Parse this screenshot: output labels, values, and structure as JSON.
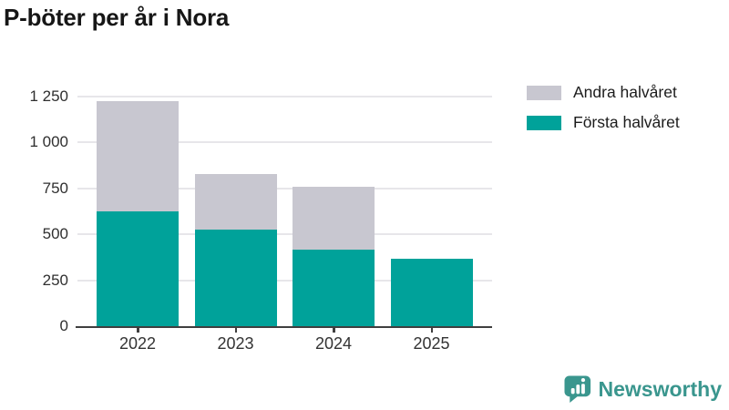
{
  "title": "P-böter per år i Nora",
  "chart_data": {
    "type": "bar",
    "stacked": true,
    "title": "P-böter per år i Nora",
    "categories": [
      "2022",
      "2023",
      "2024",
      "2025"
    ],
    "series": [
      {
        "name": "Första halvåret",
        "color": "#00a29a",
        "values": [
          625,
          525,
          415,
          365
        ]
      },
      {
        "name": "Andra halvåret",
        "color": "#c8c7d0",
        "values": [
          600,
          305,
          345,
          0
        ]
      }
    ],
    "xlabel": "",
    "ylabel": "",
    "ylim": [
      0,
      1250
    ],
    "y_ticks": [
      0,
      250,
      500,
      750,
      1000,
      1250
    ],
    "y_tick_labels": [
      "0",
      "250",
      "500",
      "750",
      "1 000",
      "1 250"
    ],
    "grid": true,
    "legend_position": "top-right"
  },
  "legend": {
    "items": [
      {
        "label": "Andra halvåret",
        "color": "#c8c7d0"
      },
      {
        "label": "Första halvåret",
        "color": "#00a29a"
      }
    ]
  },
  "branding": {
    "name": "Newsworthy",
    "color": "#3a968e",
    "logo_icon": "bar-chart-speech-bubble"
  },
  "colors": {
    "axis": "#3f3f3f",
    "gridline": "#e7e6ea",
    "tick_text": "#2f2f2f",
    "title_text": "#161616"
  }
}
